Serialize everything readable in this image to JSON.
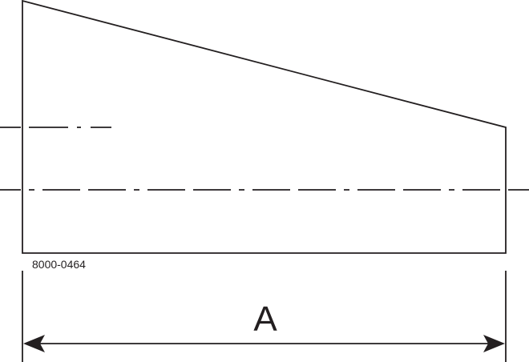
{
  "drawing": {
    "part_number": "8000-0464",
    "dimension_label": "A"
  }
}
